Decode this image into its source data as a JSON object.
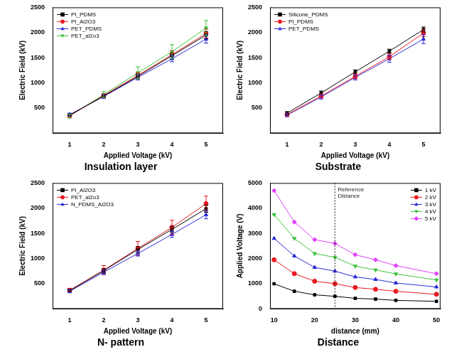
{
  "chart_data": [
    {
      "type": "line",
      "title": "Insulation layer",
      "x_label": "Applied Voltage (kV)",
      "y_label": "Electric Field (kV)",
      "x": [
        1,
        2,
        3,
        4,
        5
      ],
      "xlim": [
        0.5,
        5.5
      ],
      "xticks": [
        1,
        2,
        3,
        4,
        5
      ],
      "ylim": [
        0,
        2500
      ],
      "yticks": [
        500,
        1000,
        1500,
        2000,
        2500
      ],
      "grid": false,
      "legend": "upper left",
      "series": [
        {
          "name": "PI_PDMS",
          "color": "#000000",
          "marker": "square",
          "values": [
            360,
            740,
            1130,
            1540,
            1950
          ],
          "errors": [
            30,
            40,
            50,
            60,
            70
          ]
        },
        {
          "name": "PI_Al2O3",
          "color": "#e8191f",
          "marker": "circle",
          "values": [
            350,
            750,
            1150,
            1560,
            1980
          ],
          "errors": [
            30,
            40,
            60,
            80,
            90
          ]
        },
        {
          "name": "PET_PDMS",
          "color": "#2a2adb",
          "marker": "triangle",
          "values": [
            370,
            730,
            1110,
            1480,
            1870
          ],
          "errors": [
            30,
            40,
            50,
            60,
            80
          ]
        },
        {
          "name": "PET_al2o3",
          "color": "#3cc43c",
          "marker": "triangle-down",
          "values": [
            340,
            770,
            1200,
            1620,
            2090
          ],
          "errors": [
            40,
            60,
            120,
            140,
            150
          ]
        }
      ]
    },
    {
      "type": "line",
      "title": "Substrate",
      "x_label": "Applied Voltage (kV)",
      "y_label": "Electric Field (kV)",
      "x": [
        1,
        2,
        3,
        4,
        5
      ],
      "xlim": [
        0.5,
        5.5
      ],
      "xticks": [
        1,
        2,
        3,
        4,
        5
      ],
      "ylim": [
        0,
        2500
      ],
      "yticks": [
        500,
        1000,
        1500,
        2000,
        2500
      ],
      "grid": false,
      "legend": "upper left",
      "series": [
        {
          "name": "Silicone_PDMS",
          "color": "#000000",
          "marker": "square",
          "values": [
            400,
            800,
            1220,
            1630,
            2060
          ],
          "errors": [
            30,
            40,
            40,
            40,
            50
          ]
        },
        {
          "name": "PI_PDMS",
          "color": "#e8191f",
          "marker": "circle",
          "values": [
            370,
            740,
            1130,
            1520,
            1990
          ],
          "errors": [
            30,
            40,
            50,
            60,
            70
          ]
        },
        {
          "name": "PET_PDMS",
          "color": "#2a2adb",
          "marker": "triangle",
          "values": [
            360,
            720,
            1110,
            1480,
            1870
          ],
          "errors": [
            30,
            40,
            50,
            70,
            90
          ]
        }
      ]
    },
    {
      "type": "line",
      "title": "N- pattern",
      "x_label": "Applied Voltage (kV)",
      "y_label": "Electric Field (kV)",
      "x": [
        1,
        2,
        3,
        4,
        5
      ],
      "xlim": [
        0.5,
        5.5
      ],
      "xticks": [
        1,
        2,
        3,
        4,
        5
      ],
      "ylim": [
        0,
        2500
      ],
      "yticks": [
        500,
        1000,
        1500,
        2000,
        2500
      ],
      "grid": false,
      "legend": "upper left",
      "series": [
        {
          "name": "PI_Al2O3",
          "color": "#000000",
          "marker": "square",
          "values": [
            360,
            760,
            1180,
            1580,
            1990
          ],
          "errors": [
            30,
            40,
            60,
            60,
            70
          ]
        },
        {
          "name": "PET_al2o3",
          "color": "#e8191f",
          "marker": "circle",
          "values": [
            370,
            770,
            1200,
            1620,
            2090
          ],
          "errors": [
            40,
            90,
            140,
            140,
            150
          ]
        },
        {
          "name": "N_PDMS_Al2O3",
          "color": "#2a2adb",
          "marker": "triangle",
          "values": [
            350,
            730,
            1100,
            1480,
            1870
          ],
          "errors": [
            30,
            40,
            50,
            60,
            80
          ]
        }
      ]
    },
    {
      "type": "line",
      "title": "Distance",
      "x_label": "distance (mm)",
      "y_label": "Applied Voltage (V)",
      "x": [
        10,
        15,
        20,
        25,
        30,
        35,
        40,
        50
      ],
      "xlim": [
        9,
        51
      ],
      "xticks": [
        10,
        20,
        30,
        40,
        50
      ],
      "ylim": [
        0,
        5000
      ],
      "yticks": [
        0,
        1000,
        2000,
        3000,
        4000,
        5000
      ],
      "grid": false,
      "legend": "upper right",
      "annotations": [
        {
          "x": 25,
          "label": "Reference\nDistance"
        }
      ],
      "series": [
        {
          "name": "1 kV",
          "color": "#000000",
          "marker": "square",
          "values": [
            1000,
            700,
            560,
            500,
            420,
            390,
            340,
            300
          ]
        },
        {
          "name": "2 kV",
          "color": "#e8191f",
          "marker": "circle",
          "values": [
            1950,
            1400,
            1100,
            1000,
            850,
            780,
            700,
            580
          ]
        },
        {
          "name": "3 kV",
          "color": "#2a2adb",
          "marker": "triangle",
          "values": [
            2800,
            2100,
            1650,
            1500,
            1270,
            1170,
            1030,
            870
          ]
        },
        {
          "name": "4 kV",
          "color": "#3cc43c",
          "marker": "triangle-down",
          "values": [
            3750,
            2800,
            2200,
            2050,
            1700,
            1550,
            1390,
            1150
          ]
        },
        {
          "name": "5 kV",
          "color": "#e040fb",
          "marker": "diamond",
          "values": [
            4700,
            3450,
            2750,
            2600,
            2150,
            1950,
            1720,
            1400
          ]
        }
      ]
    }
  ]
}
